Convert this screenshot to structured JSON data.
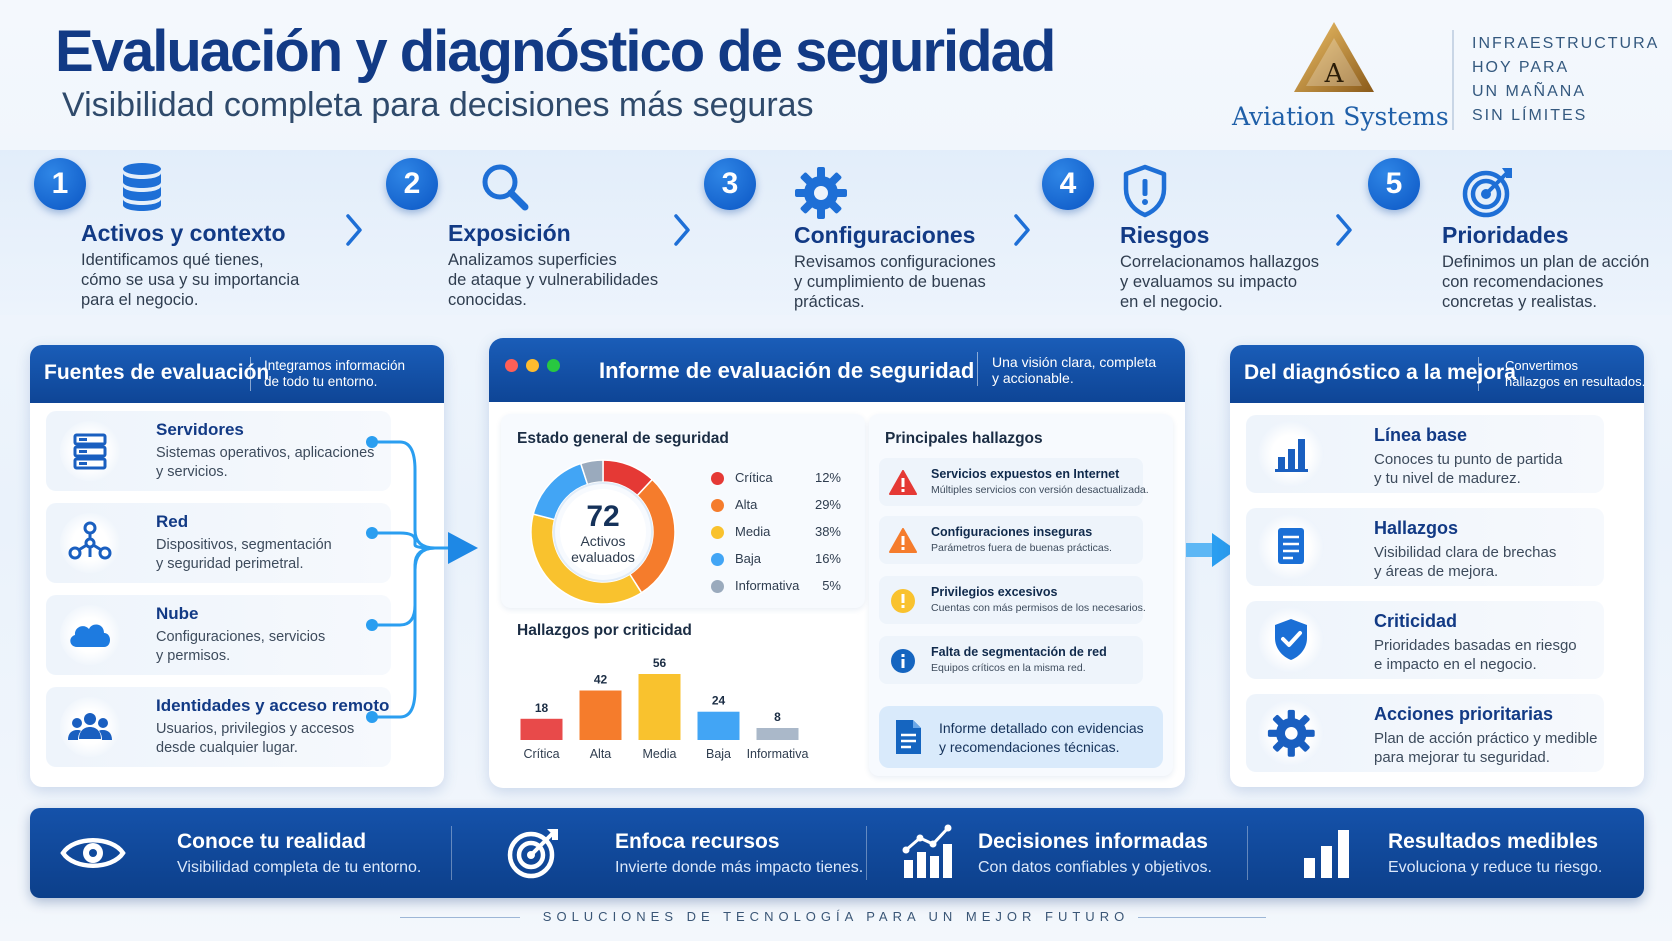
{
  "header": {
    "title": "Evaluación y diagnóstico de seguridad",
    "subtitle": "Visibilidad completa para decisiones más seguras"
  },
  "brand": {
    "logo_letter": "A",
    "name": "Aviation Systems",
    "tagline": [
      "INFRAESTRUCTURA",
      "HOY PARA",
      "UN MAÑANA",
      "SIN LÍMITES"
    ],
    "colors": {
      "primary": "#123a85",
      "accent": "#1e88e5",
      "gold": "#c99a3a"
    }
  },
  "steps": [
    {
      "num": "1",
      "icon": "database-icon",
      "title": "Activos y contexto",
      "desc": [
        "Identificamos qué tienes,",
        "cómo se usa y su importancia",
        "para el negocio."
      ]
    },
    {
      "num": "2",
      "icon": "search-icon",
      "title": "Exposición",
      "desc": [
        "Analizamos superficies",
        "de ataque y vulnerabilidades",
        "conocidas."
      ]
    },
    {
      "num": "3",
      "icon": "gear-icon",
      "title": "Configuraciones",
      "desc": [
        "Revisamos configuraciones",
        "y cumplimiento de buenas",
        "prácticas."
      ]
    },
    {
      "num": "4",
      "icon": "shield-alert-icon",
      "title": "Riesgos",
      "desc": [
        "Correlacionamos hallazgos",
        "y evaluamos su impacto",
        "en el negocio."
      ]
    },
    {
      "num": "5",
      "icon": "target-icon",
      "title": "Prioridades",
      "desc": [
        "Definimos un plan de acción",
        "con recomendaciones",
        "concretas y realistas."
      ]
    }
  ],
  "sources": {
    "title": "Fuentes de evaluación",
    "note": [
      "Integramos información",
      "de todo tu entorno."
    ],
    "items": [
      {
        "icon": "server-icon",
        "title": "Servidores",
        "desc": [
          "Sistemas operativos, aplicaciones",
          "y servicios."
        ]
      },
      {
        "icon": "network-icon",
        "title": "Red",
        "desc": [
          "Dispositivos, segmentación",
          "y seguridad perimetral."
        ]
      },
      {
        "icon": "cloud-icon",
        "title": "Nube",
        "desc": [
          "Configuraciones, servicios",
          "y permisos."
        ]
      },
      {
        "icon": "users-icon",
        "title": "Identidades y acceso remoto",
        "desc": [
          "Usuarios, privilegios y accesos",
          "desde cualquier lugar."
        ]
      }
    ]
  },
  "report": {
    "title": "Informe de evaluación de seguridad",
    "note": [
      "Una visión clara, completa",
      "y accionable."
    ],
    "status": {
      "title": "Estado general de seguridad",
      "total": "72",
      "total_label": [
        "Activos",
        "evaluados"
      ],
      "legend": [
        {
          "name": "Crítica",
          "pct": "12%",
          "value": 12,
          "color": "#e53935"
        },
        {
          "name": "Alta",
          "pct": "29%",
          "value": 29,
          "color": "#f57c2c"
        },
        {
          "name": "Media",
          "pct": "38%",
          "value": 38,
          "color": "#f9c22e"
        },
        {
          "name": "Baja",
          "pct": "16%",
          "value": 16,
          "color": "#42a5f5"
        },
        {
          "name": "Informativa",
          "pct": "5%",
          "value": 5,
          "color": "#9aaabd"
        }
      ]
    },
    "findings": {
      "title": "Principales hallazgos",
      "items": [
        {
          "icon": "critical-alert-icon",
          "title": "Servicios expuestos en Internet",
          "desc": "Múltiples servicios con versión desactualizada."
        },
        {
          "icon": "warning-icon",
          "title": "Configuraciones inseguras",
          "desc": "Parámetros fuera de buenas prácticas."
        },
        {
          "icon": "caution-icon",
          "title": "Privilegios excesivos",
          "desc": "Cuentas con más permisos de los necesarios."
        },
        {
          "icon": "info-icon",
          "title": "Falta de segmentación de red",
          "desc": "Equipos críticos en la misma red."
        }
      ],
      "report_link": [
        "Informe detallado con evidencias",
        "y recomendaciones técnicas."
      ]
    },
    "bars_title": "Hallazgos por criticidad"
  },
  "chart_data": [
    {
      "type": "pie",
      "categories": [
        "Crítica",
        "Alta",
        "Media",
        "Baja",
        "Informativa"
      ],
      "values": [
        12,
        29,
        38,
        16,
        5
      ],
      "title": "Estado general de seguridad"
    },
    {
      "type": "bar",
      "title": "Hallazgos por criticidad",
      "categories": [
        "Crítica",
        "Alta",
        "Media",
        "Baja",
        "Informativa"
      ],
      "values": [
        18,
        42,
        56,
        24,
        8
      ],
      "colors": [
        "#e84a4a",
        "#f57c2c",
        "#f9c22e",
        "#42a5f5",
        "#aab8c9"
      ],
      "ylim": [
        0,
        56
      ]
    }
  ],
  "improvement": {
    "title": "Del diagnóstico a la mejora",
    "note": [
      "Convertimos",
      "hallazgos en resultados."
    ],
    "items": [
      {
        "icon": "bar-chart-icon",
        "title": "Línea base",
        "desc": [
          "Conoces tu punto de partida",
          "y tu nivel de madurez."
        ]
      },
      {
        "icon": "document-icon",
        "title": "Hallazgos",
        "desc": [
          "Visibilidad clara de brechas",
          "y áreas de mejora."
        ]
      },
      {
        "icon": "shield-check-icon",
        "title": "Criticidad",
        "desc": [
          "Prioridades basadas en riesgo",
          "e impacto en el negocio."
        ]
      },
      {
        "icon": "gear-icon",
        "title": "Acciones prioritarias",
        "desc": [
          "Plan de acción práctico y medible",
          "para mejorar tu seguridad."
        ]
      }
    ]
  },
  "benefits": [
    {
      "icon": "eye-icon",
      "title": "Conoce tu realidad",
      "desc": "Visibilidad completa de tu entorno."
    },
    {
      "icon": "target-icon",
      "title": "Enfoca recursos",
      "desc": "Invierte donde más impacto tienes."
    },
    {
      "icon": "growth-chart-icon",
      "title": "Decisiones informadas",
      "desc": "Con datos confiables y objetivos."
    },
    {
      "icon": "bar-chart-icon",
      "title": "Resultados medibles",
      "desc": "Evoluciona y reduce tu riesgo."
    }
  ],
  "footer": "SOLUCIONES DE TECNOLOGÍA PARA UN MEJOR FUTURO"
}
